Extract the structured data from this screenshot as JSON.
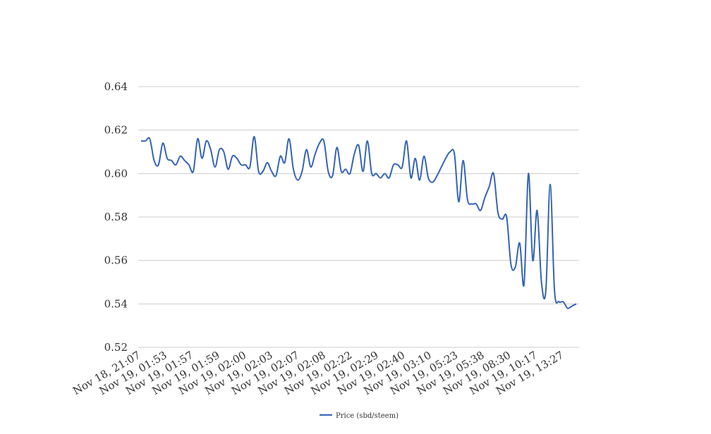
{
  "chart_data": {
    "type": "line",
    "title": "",
    "xlabel": "",
    "ylabel": "",
    "ylim": [
      0.52,
      0.64
    ],
    "yticks": [
      0.52,
      0.54,
      0.56,
      0.58,
      0.6,
      0.62,
      0.64
    ],
    "ytick_labels": [
      "0.52",
      "0.54",
      "0.56",
      "0.58",
      "0.60",
      "0.62",
      "0.64"
    ],
    "grid": true,
    "legend_position": "bottom",
    "x_tick_labels": [
      "Nov 18, 21:07",
      "Nov 19, 01:53",
      "Nov 19, 01:57",
      "Nov 19, 01:59",
      "Nov 19, 02:00",
      "Nov 19, 02:03",
      "Nov 19, 02:07",
      "Nov 19, 02:08",
      "Nov 19, 02:22",
      "Nov 19, 02:29",
      "Nov 19, 02:40",
      "Nov 19, 03:10",
      "Nov 19, 05:23",
      "Nov 19, 05:38",
      "Nov 19, 08:30",
      "Nov 19, 10:17",
      "Nov 19, 13:27"
    ],
    "series": [
      {
        "name": "Price (sbd/steem)",
        "color": "#3563b6",
        "values": [
          0.615,
          0.615,
          0.616,
          0.606,
          0.604,
          0.614,
          0.607,
          0.606,
          0.604,
          0.608,
          0.606,
          0.604,
          0.601,
          0.616,
          0.607,
          0.615,
          0.611,
          0.603,
          0.611,
          0.61,
          0.602,
          0.608,
          0.607,
          0.604,
          0.604,
          0.603,
          0.617,
          0.601,
          0.601,
          0.605,
          0.601,
          0.599,
          0.608,
          0.605,
          0.616,
          0.602,
          0.597,
          0.601,
          0.611,
          0.603,
          0.609,
          0.614,
          0.615,
          0.601,
          0.599,
          0.612,
          0.601,
          0.602,
          0.6,
          0.609,
          0.613,
          0.601,
          0.615,
          0.6,
          0.6,
          0.598,
          0.6,
          0.598,
          0.604,
          0.604,
          0.603,
          0.615,
          0.598,
          0.607,
          0.597,
          0.608,
          0.598,
          0.596,
          0.599,
          0.603,
          0.607,
          0.61,
          0.609,
          0.587,
          0.606,
          0.588,
          0.586,
          0.586,
          0.583,
          0.589,
          0.594,
          0.6,
          0.582,
          0.579,
          0.58,
          0.558,
          0.557,
          0.568,
          0.549,
          0.6,
          0.56,
          0.583,
          0.55,
          0.546,
          0.595,
          0.546,
          0.541,
          0.541,
          0.538,
          0.539,
          0.54
        ]
      }
    ]
  }
}
